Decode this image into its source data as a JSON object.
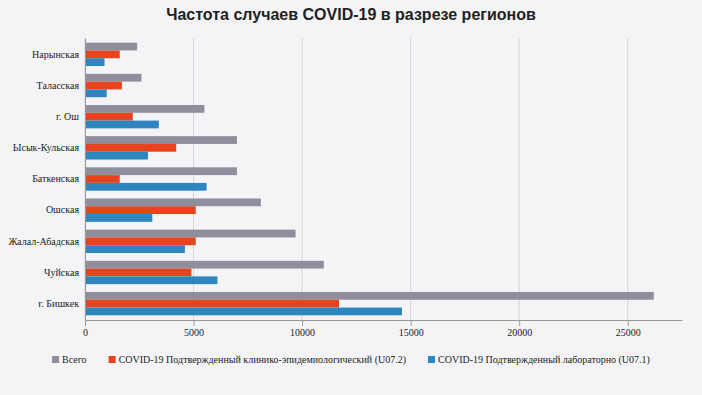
{
  "chart_data": {
    "type": "bar",
    "orientation": "horizontal",
    "title": "Частота случаев COVID-19 в разрезе регионов",
    "categories": [
      "Нарынская",
      "Таласская",
      "г. Ош",
      "Ысык-Кульская",
      "Баткенская",
      "Ошская",
      "Жалал-Абадская",
      "Чуйская",
      "г. Бишкек"
    ],
    "series": [
      {
        "name": "Всего",
        "color": "#8e8e9c",
        "values": [
          2400,
          2600,
          5500,
          7000,
          7000,
          8100,
          9700,
          11000,
          26200
        ]
      },
      {
        "name": "COVID-19 Подтвержденный клинико-эпидемиологический (U07.2)",
        "color": "#e8431f",
        "values": [
          1600,
          1700,
          2200,
          4200,
          1600,
          5100,
          5100,
          4900,
          11700
        ]
      },
      {
        "name": "COVID-19 Подтвержденный лабораторно (U07.1)",
        "color": "#2e86c1",
        "values": [
          900,
          1000,
          3400,
          2900,
          5600,
          3100,
          4600,
          6100,
          14600
        ]
      }
    ],
    "xlim": [
      0,
      27500
    ],
    "xticks": [
      0,
      5000,
      10000,
      15000,
      20000,
      25000
    ],
    "grid": true,
    "legend": "bottom"
  }
}
